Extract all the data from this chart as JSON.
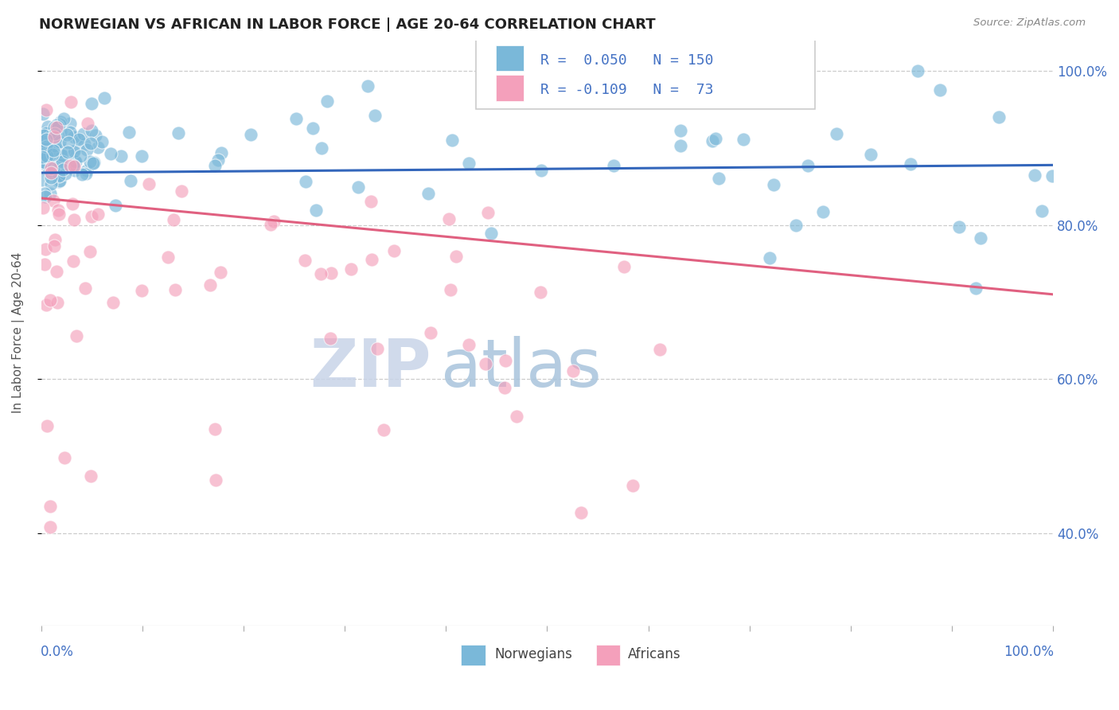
{
  "title": "NORWEGIAN VS AFRICAN IN LABOR FORCE | AGE 20-64 CORRELATION CHART",
  "source": "Source: ZipAtlas.com",
  "ylabel": "In Labor Force | Age 20-64",
  "ylabel_right_ticks": [
    "40.0%",
    "60.0%",
    "80.0%",
    "100.0%"
  ],
  "ylabel_right_vals": [
    0.4,
    0.6,
    0.8,
    1.0
  ],
  "legend_entries": [
    {
      "label": "Norwegians",
      "R": "0.050",
      "N": "150",
      "color": "#7ab8d9"
    },
    {
      "label": "Africans",
      "R": "-0.109",
      "N": "73",
      "color": "#f4a0bb"
    }
  ],
  "norwegian_color": "#7ab8d9",
  "african_color": "#f4a0bb",
  "trend_norwegian_color": "#3366bb",
  "trend_african_color": "#e06080",
  "background_color": "#ffffff",
  "grid_color": "#cccccc",
  "watermark_zip": "ZIP",
  "watermark_atlas": "atlas",
  "watermark_color_zip": "#c8d4e8",
  "watermark_color_atlas": "#a8c4dc",
  "title_color": "#222222",
  "axis_label_color": "#4472c4",
  "xlim": [
    0.0,
    1.0
  ],
  "ylim": [
    0.28,
    1.04
  ],
  "nor_trend_start": 0.868,
  "nor_trend_end": 0.878,
  "afr_trend_start": 0.835,
  "afr_trend_end": 0.71
}
